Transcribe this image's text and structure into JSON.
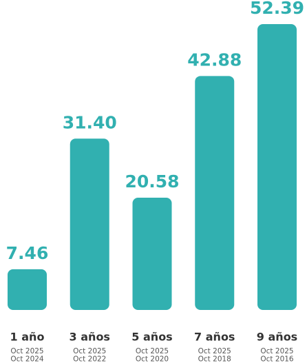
{
  "chart_data": {
    "type": "bar",
    "color": "#31b0b0",
    "categories": [
      "1 año",
      "3 años",
      "5 años",
      "7 años",
      "9 años"
    ],
    "values": [
      7.46,
      31.4,
      20.58,
      42.88,
      52.39
    ],
    "value_labels": [
      "7.46",
      "31.40",
      "20.58",
      "42.88",
      "52.39"
    ],
    "periods": [
      [
        "Oct 2025",
        "Oct 2024"
      ],
      [
        "Oct 2025",
        "Oct 2022"
      ],
      [
        "Oct 2025",
        "Oct 2020"
      ],
      [
        "Oct 2025",
        "Oct 2018"
      ],
      [
        "Oct 2025",
        "Oct 2016"
      ]
    ]
  }
}
